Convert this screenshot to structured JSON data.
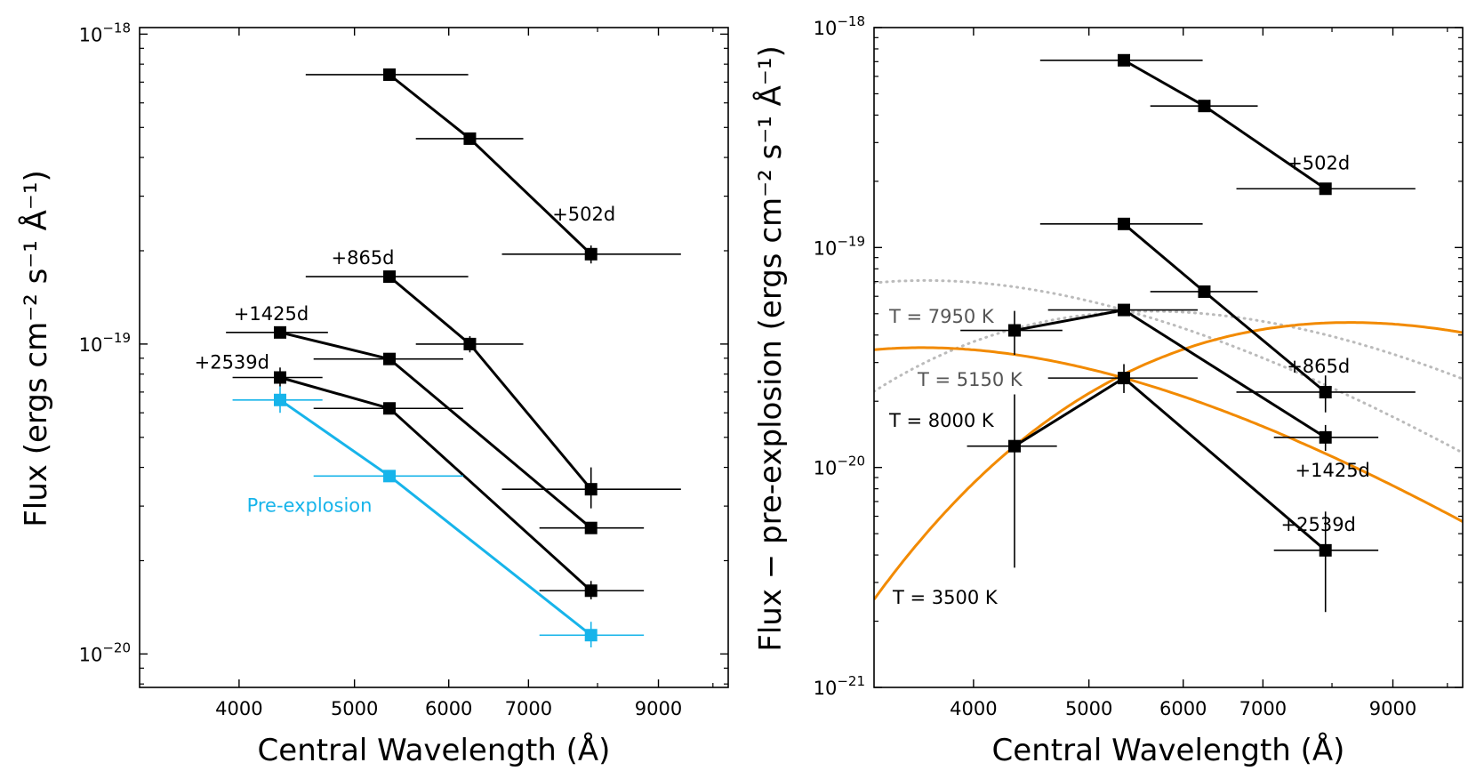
{
  "chart_data": [
    {
      "type": "line",
      "xlabel": "Central Wavelength (Å)",
      "ylabel": "Flux (ergs cm⁻² s⁻¹ Å⁻¹)",
      "xscale": "log",
      "yscale": "log",
      "xlim": [
        3300,
        10300
      ],
      "ylim": [
        7.8e-21,
        1.05e-18
      ],
      "x_ticks": [
        4000,
        5000,
        6000,
        7000,
        9000
      ],
      "x_tick_labels": [
        "4000",
        "5000",
        "6000",
        "7000",
        "9000"
      ],
      "y_major_ticks": [
        1e-20,
        1e-19,
        1e-18
      ],
      "y_tick_labels": [
        {
          "base": "10",
          "exp": "−20"
        },
        {
          "base": "10",
          "exp": "−19"
        },
        {
          "base": "10",
          "exp": "−18"
        }
      ],
      "series": [
        {
          "name": "+502d",
          "label": "+502d",
          "color": "#000000",
          "marker": "square",
          "label_anchor": "above-last",
          "points": [
            {
              "x": 5350,
              "y": 7.4e-19,
              "xerr": [
                4550,
                6230
              ]
            },
            {
              "x": 6250,
              "y": 4.6e-19,
              "xerr": [
                5630,
                6930
              ]
            },
            {
              "x": 7900,
              "y": 1.95e-19,
              "xerr": [
                6650,
                9400
              ],
              "yerr": [
                1.82e-19,
                2.08e-19
              ]
            }
          ]
        },
        {
          "name": "+865d",
          "label": "+865d",
          "color": "#000000",
          "marker": "square",
          "label_anchor": "above-first",
          "points": [
            {
              "x": 5350,
              "y": 1.65e-19,
              "xerr": [
                4550,
                6230
              ]
            },
            {
              "x": 6250,
              "y": 1e-19,
              "xerr": [
                5630,
                6930
              ],
              "yerr": [
                9.4e-20,
                1.06e-19
              ]
            },
            {
              "x": 7900,
              "y": 3.4e-20,
              "xerr": [
                6650,
                9400
              ],
              "yerr": [
                2.95e-20,
                4e-20
              ]
            }
          ]
        },
        {
          "name": "+1425d",
          "label": "+1425d",
          "color": "#000000",
          "marker": "square",
          "label_anchor": "above-first",
          "points": [
            {
              "x": 4330,
              "y": 1.09e-19,
              "xerr": [
                3900,
                4750
              ]
            },
            {
              "x": 5350,
              "y": 8.95e-20,
              "xerr": [
                4620,
                6170
              ]
            },
            {
              "x": 7900,
              "y": 2.55e-20,
              "xerr": [
                7150,
                8750
              ]
            }
          ]
        },
        {
          "name": "+2539d",
          "label": "+2539d",
          "color": "#000000",
          "marker": "square",
          "label_anchor": "left-first",
          "points": [
            {
              "x": 4330,
              "y": 7.8e-20,
              "xerr": [
                3950,
                4700
              ],
              "yerr": [
                7.3e-20,
                8.4e-20
              ]
            },
            {
              "x": 5350,
              "y": 6.2e-20,
              "xerr": [
                4620,
                6170
              ]
            },
            {
              "x": 7900,
              "y": 1.6e-20,
              "xerr": [
                7150,
                8750
              ],
              "yerr": [
                1.5e-20,
                1.72e-20
              ]
            }
          ]
        },
        {
          "name": "Pre-explosion",
          "label": "Pre-explosion",
          "color": "#17b4ea",
          "marker": "square",
          "label_anchor": "below-mid",
          "points": [
            {
              "x": 4330,
              "y": 6.6e-20,
              "xerr": [
                3950,
                4700
              ],
              "yerr": [
                6e-20,
                7.3e-20
              ]
            },
            {
              "x": 5350,
              "y": 3.75e-20,
              "xerr": [
                4620,
                6170
              ]
            },
            {
              "x": 7900,
              "y": 1.15e-20,
              "xerr": [
                7150,
                8750
              ],
              "yerr": [
                1.05e-20,
                1.27e-20
              ]
            }
          ]
        }
      ]
    },
    {
      "type": "line",
      "xlabel": "Central Wavelength (Å)",
      "ylabel": "Flux − pre-explosion (ergs cm⁻² s⁻¹ Å⁻¹)",
      "xscale": "log",
      "yscale": "log",
      "xlim": [
        3300,
        10300
      ],
      "ylim": [
        1e-21,
        1e-18
      ],
      "x_ticks": [
        4000,
        5000,
        6000,
        7000,
        9000
      ],
      "x_tick_labels": [
        "4000",
        "5000",
        "6000",
        "7000",
        "9000"
      ],
      "y_major_ticks": [
        1e-21,
        1e-20,
        1e-19,
        1e-18
      ],
      "y_tick_labels": [
        {
          "base": "10",
          "exp": "−21"
        },
        {
          "base": "10",
          "exp": "−20"
        },
        {
          "base": "10",
          "exp": "−19"
        },
        {
          "base": "10",
          "exp": "−18"
        }
      ],
      "series": [
        {
          "name": "+502d",
          "label": "+502d",
          "color": "#000000",
          "marker": "square",
          "label_anchor": "above-last",
          "points": [
            {
              "x": 5350,
              "y": 7.1e-19,
              "xerr": [
                4550,
                6230
              ]
            },
            {
              "x": 6250,
              "y": 4.4e-19,
              "xerr": [
                5630,
                6930
              ]
            },
            {
              "x": 7900,
              "y": 1.85e-19,
              "xerr": [
                6650,
                9400
              ]
            }
          ]
        },
        {
          "name": "+865d",
          "label": "+865d",
          "color": "#000000",
          "marker": "square",
          "label_anchor": "above-last",
          "points": [
            {
              "x": 5350,
              "y": 1.28e-19,
              "xerr": [
                4550,
                6230
              ]
            },
            {
              "x": 6250,
              "y": 6.3e-20,
              "xerr": [
                5630,
                6930
              ]
            },
            {
              "x": 7900,
              "y": 2.2e-20,
              "xerr": [
                6650,
                9400
              ],
              "yerr": [
                1.78e-20,
                2.62e-20
              ]
            }
          ]
        },
        {
          "name": "+1425d",
          "label": "+1425d",
          "color": "#000000",
          "marker": "square",
          "label_anchor": "below-last",
          "points": [
            {
              "x": 4330,
              "y": 4.2e-20,
              "xerr": [
                3900,
                4750
              ],
              "yerr": [
                3.25e-20,
                5.15e-20
              ]
            },
            {
              "x": 5350,
              "y": 5.2e-20,
              "xerr": [
                4620,
                6170
              ]
            },
            {
              "x": 7900,
              "y": 1.37e-20,
              "xerr": [
                7150,
                8750
              ],
              "yerr": [
                1.19e-20,
                1.56e-20
              ]
            }
          ]
        },
        {
          "name": "+2539d",
          "label": "+2539d",
          "color": "#000000",
          "marker": "square",
          "label_anchor": "above-last",
          "points": [
            {
              "x": 4330,
              "y": 1.25e-20,
              "xerr": [
                3950,
                4700
              ],
              "yerr": [
                3.5e-21,
                2.15e-20
              ]
            },
            {
              "x": 5350,
              "y": 2.55e-20,
              "xerr": [
                4620,
                6170
              ],
              "yerr": [
                2.18e-20,
                2.95e-20
              ]
            },
            {
              "x": 7900,
              "y": 4.2e-21,
              "xerr": [
                7150,
                8750
              ],
              "yerr": [
                2.2e-21,
                6.3e-21
              ]
            }
          ]
        }
      ],
      "blackbody_curves": [
        {
          "label": "T = 7950 K",
          "temperature": 7950,
          "ref": {
            "x": 5350,
            "y": 5.2e-20
          },
          "color": "#bbbbbb",
          "style": "dotted",
          "label_color": "#555555"
        },
        {
          "label": "T = 5150 K",
          "temperature": 5150,
          "ref": {
            "x": 5350,
            "y": 5.1e-20
          },
          "color": "#bbbbbb",
          "style": "dotted",
          "label_color": "#555555"
        },
        {
          "label": "T = 8000 K",
          "temperature": 8000,
          "ref": {
            "x": 5350,
            "y": 2.55e-20
          },
          "color": "#f28a00",
          "style": "solid",
          "label_color": "#000000"
        },
        {
          "label": "T = 3500 K",
          "temperature": 3500,
          "ref": {
            "x": 4330,
            "y": 1.25e-20
          },
          "color": "#f28a00",
          "style": "solid",
          "label_color": "#000000"
        }
      ]
    }
  ]
}
